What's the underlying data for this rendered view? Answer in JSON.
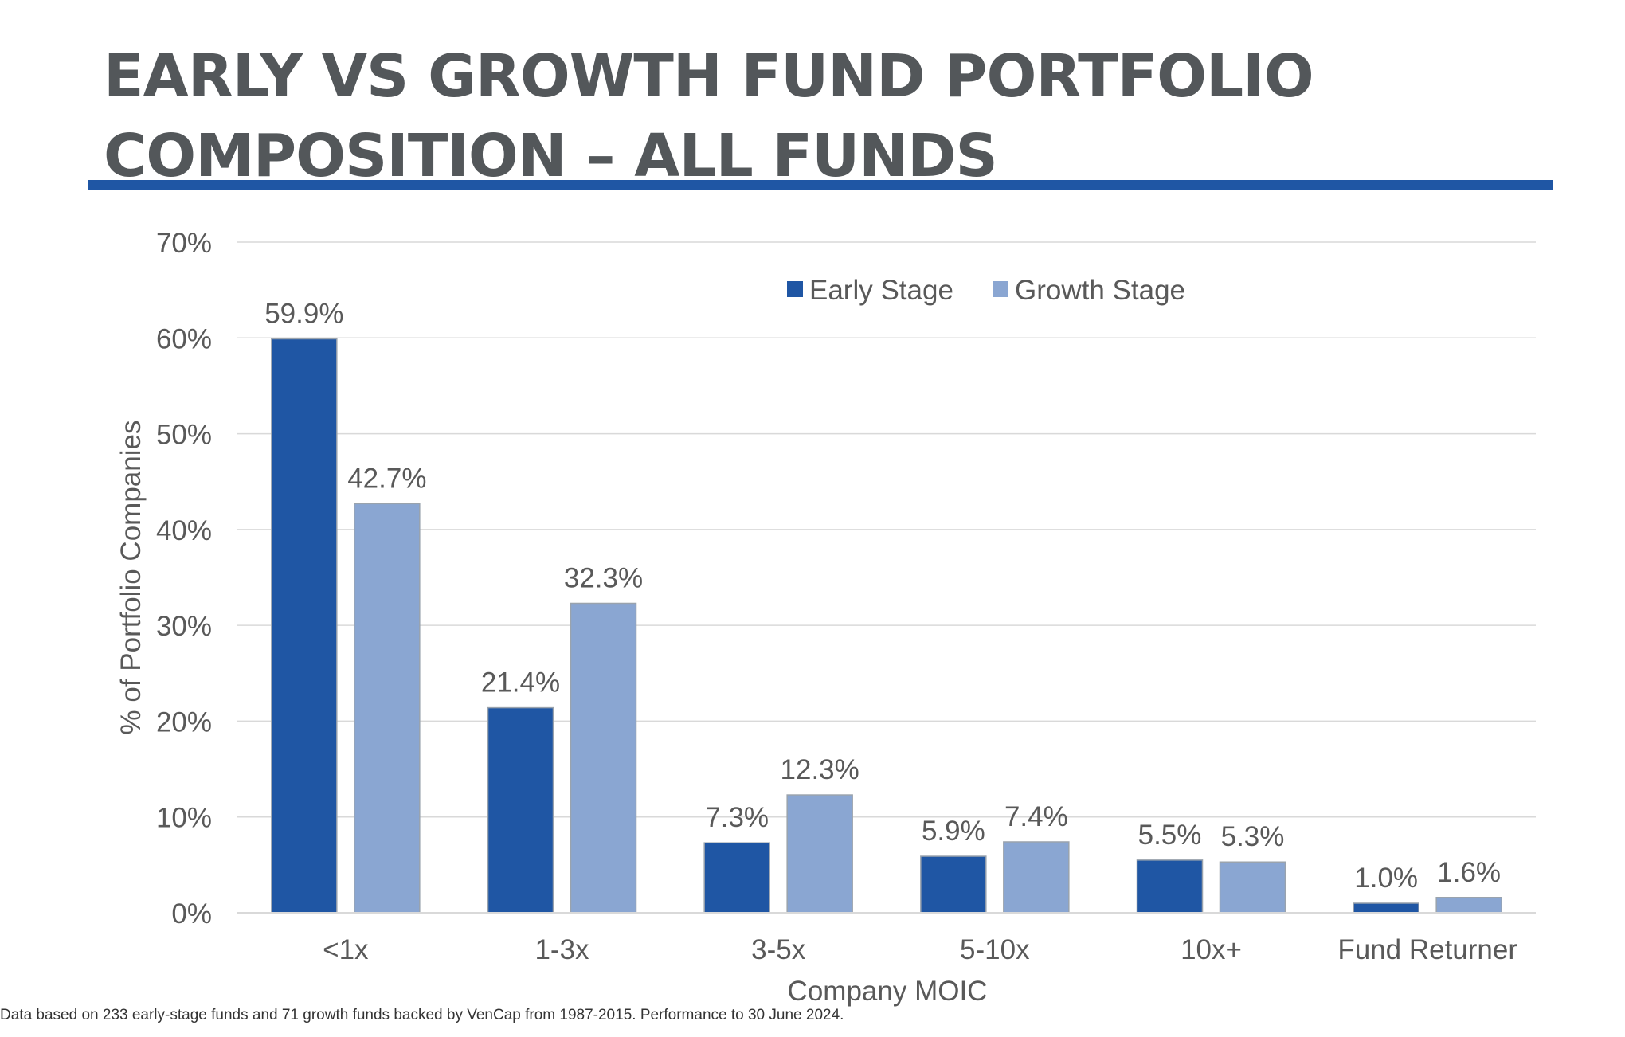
{
  "title": {
    "line1": "EARLY VS GROWTH FUND PORTFOLIO",
    "line2": "COMPOSITION – ALL FUNDS"
  },
  "colors": {
    "title_text": "#53575a",
    "title_rule": "#1f56a4",
    "early_stage": "#1f56a4",
    "growth_stage": "#8aa6d2",
    "axis_text": "#595959",
    "gridline": "#d9d9d9"
  },
  "chart_data": {
    "type": "bar",
    "categories": [
      "<1x",
      "1-3x",
      "3-5x",
      "5-10x",
      "10x+",
      "Fund Returner"
    ],
    "series": [
      {
        "name": "Early Stage",
        "values": [
          59.9,
          21.4,
          7.3,
          5.9,
          5.5,
          1.0
        ],
        "labels": [
          "59.9%",
          "21.4%",
          "7.3%",
          "5.9%",
          "5.5%",
          "1.0%"
        ]
      },
      {
        "name": "Growth Stage",
        "values": [
          42.7,
          32.3,
          12.3,
          7.4,
          5.3,
          1.6
        ],
        "labels": [
          "42.7%",
          "32.3%",
          "12.3%",
          "7.4%",
          "5.3%",
          "1.6%"
        ]
      }
    ],
    "xlabel": "Company MOIC",
    "ylabel": "% of Portfolio Companies",
    "ylim": [
      0,
      70
    ],
    "yticks": [
      0,
      10,
      20,
      30,
      40,
      50,
      60,
      70
    ],
    "ytick_labels": [
      "0%",
      "10%",
      "20%",
      "30%",
      "40%",
      "50%",
      "60%",
      "70%"
    ],
    "grid": true,
    "legend_position": "top-center"
  },
  "footnote": "Data based on 233 early-stage funds and 71 growth funds backed by VenCap from 1987-2015.  Performance to 30 June 2024."
}
